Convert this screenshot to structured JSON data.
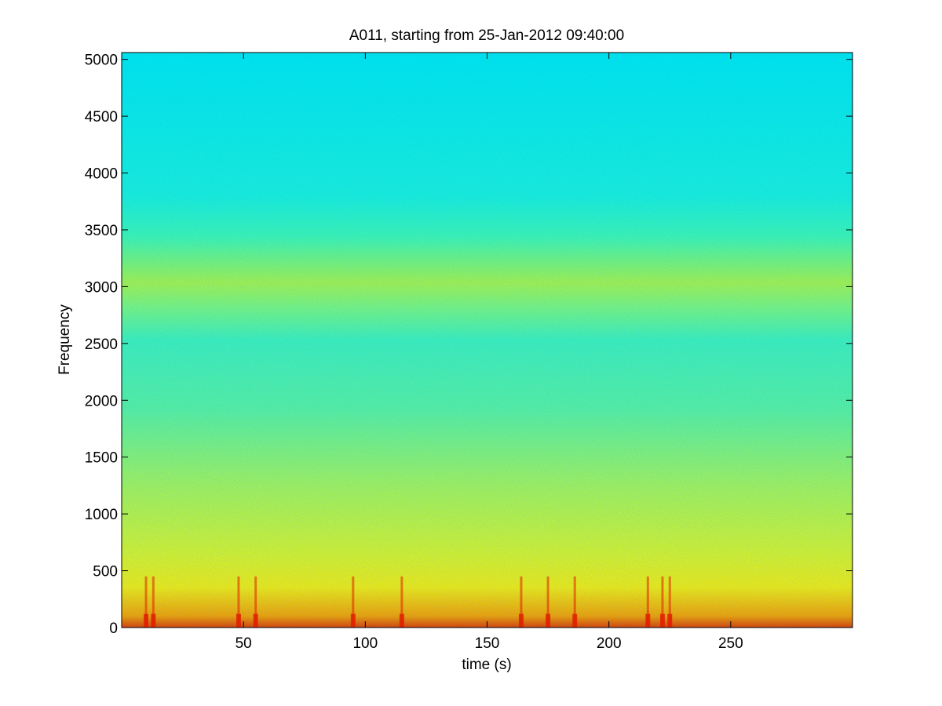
{
  "chart_data": {
    "type": "heatmap",
    "title": "A011, starting from 25-Jan-2012 09:40:00",
    "xlabel": "time (s)",
    "ylabel": "Frequency",
    "xlim": [
      0,
      300
    ],
    "ylim": [
      0,
      5060
    ],
    "xticks": [
      50,
      100,
      150,
      200,
      250
    ],
    "xtick_labels": [
      "50",
      "100",
      "150",
      "200",
      "250"
    ],
    "yticks": [
      0,
      500,
      1000,
      1500,
      2000,
      2500,
      3000,
      3500,
      4000,
      4500,
      5000
    ],
    "ytick_labels": [
      "0",
      "500",
      "1000",
      "1500",
      "2000",
      "2500",
      "3000",
      "3500",
      "4000",
      "4500",
      "5000"
    ],
    "colormap": "jet",
    "grid": false,
    "legend": "none",
    "description_levels": {
      "frequency_bands": [
        {
          "from": 0,
          "to": 150,
          "level": "high"
        },
        {
          "from": 150,
          "to": 500,
          "level": "medium-high"
        },
        {
          "from": 500,
          "to": 1600,
          "level": "medium"
        },
        {
          "from": 1600,
          "to": 2600,
          "level": "medium-low"
        },
        {
          "from": 2600,
          "to": 3000,
          "level": "medium"
        },
        {
          "from": 3000,
          "to": 3700,
          "level": "low"
        },
        {
          "from": 3700,
          "to": 5060,
          "level": "lowest"
        }
      ],
      "broadband_events_s": [
        10,
        13,
        48,
        55,
        95,
        115,
        164,
        175,
        186,
        216,
        222,
        225
      ]
    },
    "colors": {
      "low": "#00e8e8",
      "mid_low": "#3cf5b8",
      "mid": "#b0f53c",
      "high": "#f5f000",
      "peak": "#e02000"
    }
  }
}
